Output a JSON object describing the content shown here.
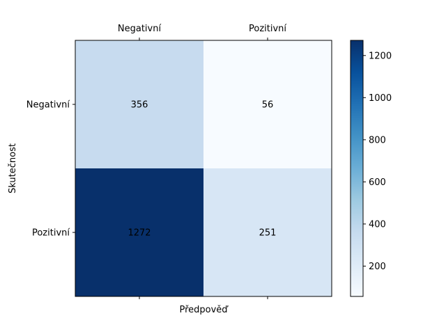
{
  "chart_data": {
    "type": "heatmap",
    "title": "",
    "xlabel": "Předpověď",
    "ylabel": "Skutečnost",
    "x_categories": [
      "Negativní",
      "Pozitivní"
    ],
    "y_categories": [
      "Negativní",
      "Pozitivní"
    ],
    "values": [
      [
        356,
        56
      ],
      [
        1272,
        251
      ]
    ],
    "colormap": "Blues",
    "x_ticks_position": "top",
    "colorbar": {
      "range": [
        56,
        1272
      ],
      "ticks": [
        200,
        400,
        600,
        800,
        1000,
        1200
      ],
      "tick_labels": [
        "200",
        "400",
        "600",
        "800",
        "1000",
        "1200"
      ]
    },
    "grid": false
  }
}
